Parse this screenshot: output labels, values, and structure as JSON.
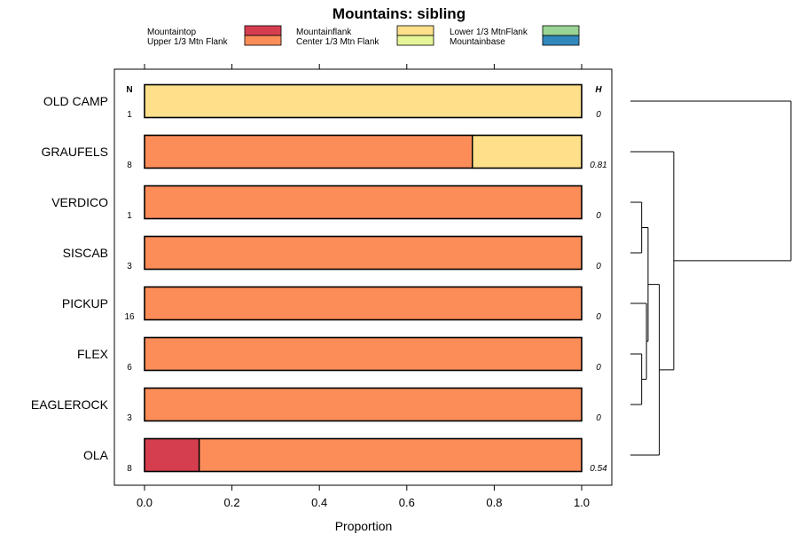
{
  "chart_data": {
    "type": "bar",
    "orientation": "horizontal",
    "stacked": true,
    "title": "Mountains: sibling",
    "xlabel": "Proportion",
    "xlim": [
      0,
      1
    ],
    "xticks": [
      "0.0",
      "0.2",
      "0.4",
      "0.6",
      "0.8",
      "1.0"
    ],
    "xtick_values": [
      0,
      0.2,
      0.4,
      0.6,
      0.8,
      1.0
    ],
    "n_header": "N",
    "h_header": "H",
    "legend": [
      {
        "name": "Mountaintop",
        "color": "#d53e4f"
      },
      {
        "name": "Upper 1/3 Mtn Flank",
        "color": "#fc8d59"
      },
      {
        "name": "Mountainflank",
        "color": "#fee08b"
      },
      {
        "name": "Center 1/3 Mtn Flank",
        "color": "#e6f598"
      },
      {
        "name": "Lower 1/3 MtnFlank",
        "color": "#99d594"
      },
      {
        "name": "Mountainbase",
        "color": "#3288bd"
      }
    ],
    "categories": [
      "OLD CAMP",
      "GRAUFELS",
      "VERDICO",
      "SISCAB",
      "PICKUP",
      "FLEX",
      "EAGLEROCK",
      "OLA"
    ],
    "n_values": [
      "1",
      "8",
      "1",
      "3",
      "16",
      "6",
      "3",
      "8"
    ],
    "h_values": [
      "0",
      "0.81",
      "0",
      "0",
      "0",
      "0",
      "0",
      "0.54"
    ],
    "series": [
      {
        "name": "Mountaintop",
        "values": [
          0,
          0,
          0,
          0,
          0,
          0,
          0,
          0.125
        ]
      },
      {
        "name": "Upper 1/3 Mtn Flank",
        "values": [
          0,
          0.75,
          1,
          1,
          1,
          1,
          1,
          0.875
        ]
      },
      {
        "name": "Mountainflank",
        "values": [
          1,
          0.25,
          0,
          0,
          0,
          0,
          0,
          0
        ]
      },
      {
        "name": "Center 1/3 Mtn Flank",
        "values": [
          0,
          0,
          0,
          0,
          0,
          0,
          0,
          0
        ]
      },
      {
        "name": "Lower 1/3 MtnFlank",
        "values": [
          0,
          0,
          0,
          0,
          0,
          0,
          0,
          0
        ]
      },
      {
        "name": "Mountainbase",
        "values": [
          0,
          0,
          0,
          0,
          0,
          0,
          0,
          0
        ]
      }
    ],
    "dendrogram": {
      "leaf_order": [
        "OLD CAMP",
        "GRAUFELS",
        "VERDICO",
        "SISCAB",
        "PICKUP",
        "FLEX",
        "EAGLEROCK",
        "OLA"
      ],
      "merges": [
        {
          "a": "VERDICO",
          "b": "SISCAB",
          "height": 0.07
        },
        {
          "a": "FLEX",
          "b": "EAGLEROCK",
          "height": 0.07
        },
        {
          "a": "PICKUP",
          "b": "c1",
          "height": 0.1
        },
        {
          "a": "c0",
          "b": "c2",
          "height": 0.11
        },
        {
          "a": "c3",
          "b": "OLA",
          "height": 0.18
        },
        {
          "a": "GRAUFELS",
          "b": "c4",
          "height": 0.27
        },
        {
          "a": "OLD CAMP",
          "b": "c5",
          "height": 1.0
        }
      ]
    }
  }
}
